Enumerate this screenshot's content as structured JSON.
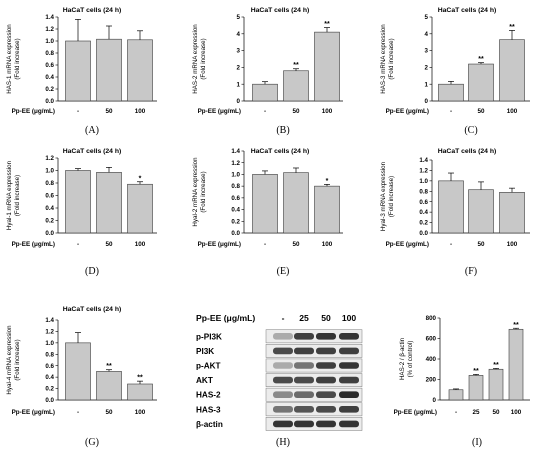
{
  "figure": {
    "colors": {
      "bar_fill": "#c8c8c8",
      "bar_stroke": "#3a3a3a",
      "axis": "#000000",
      "blot_background": "#ececec",
      "blot_border": "#7a7a7a"
    }
  },
  "chart_data": [
    {
      "type": "bar",
      "panel_label": "(A)",
      "title": "HaCaT cells (24 h)",
      "ylabel": [
        "HAS-1 mRNA expression",
        "(Fold increase)"
      ],
      "xlabel": "Pp-EE (μg/mL)",
      "categories": [
        "-",
        "50",
        "100"
      ],
      "values": [
        1.0,
        1.03,
        1.02
      ],
      "errors": [
        0.36,
        0.22,
        0.15
      ],
      "annotations": [
        "",
        "",
        ""
      ],
      "ylim": [
        0,
        1.4
      ],
      "yticks": [
        "0.0",
        "0.2",
        "0.4",
        "0.6",
        "0.8",
        "1.0",
        "1.2",
        "1.4"
      ]
    },
    {
      "type": "bar",
      "panel_label": "(B)",
      "title": "HaCaT cells (24 h)",
      "ylabel": [
        "HAS-2 mRNA expression",
        "(Fold increase)"
      ],
      "xlabel": "Pp-EE (μg/mL)",
      "categories": [
        "-",
        "50",
        "100"
      ],
      "values": [
        1.0,
        1.8,
        4.1
      ],
      "errors": [
        0.15,
        0.12,
        0.27
      ],
      "annotations": [
        "",
        "**",
        "**"
      ],
      "ylim": [
        0,
        5
      ],
      "yticks": [
        "0",
        "1",
        "2",
        "3",
        "4",
        "5"
      ]
    },
    {
      "type": "bar",
      "panel_label": "(C)",
      "title": "HaCaT cells (24 h)",
      "ylabel": [
        "HAS-3 mRNA expression",
        "(Fold increase)"
      ],
      "xlabel": "Pp-EE (μg/mL)",
      "categories": [
        "-",
        "50",
        "100"
      ],
      "values": [
        1.0,
        2.2,
        3.65
      ],
      "errors": [
        0.17,
        0.08,
        0.55
      ],
      "annotations": [
        "",
        "**",
        "**"
      ],
      "ylim": [
        0,
        5
      ],
      "yticks": [
        "0",
        "1",
        "2",
        "3",
        "4",
        "5"
      ]
    },
    {
      "type": "bar",
      "panel_label": "(D)",
      "title": "HaCaT cells (24 h)",
      "ylabel": [
        "Hyal-1 mRNA expression",
        "(Fold increase)"
      ],
      "xlabel": "Pp-EE (μg/mL)",
      "categories": [
        "-",
        "50",
        "100"
      ],
      "values": [
        1.0,
        0.97,
        0.78
      ],
      "errors": [
        0.03,
        0.08,
        0.04
      ],
      "annotations": [
        "",
        "",
        "*"
      ],
      "ylim": [
        0,
        1.2
      ],
      "yticks": [
        "0.0",
        "0.2",
        "0.4",
        "0.6",
        "0.8",
        "1.0",
        "1.2"
      ]
    },
    {
      "type": "bar",
      "panel_label": "(E)",
      "title": "HaCaT cells (24 h)",
      "ylabel": [
        "Hyal-2 mRNA expression",
        "(Fold increase)"
      ],
      "xlabel": "Pp-EE (μg/mL)",
      "categories": [
        "-",
        "50",
        "100"
      ],
      "values": [
        1.0,
        1.03,
        0.8
      ],
      "errors": [
        0.06,
        0.08,
        0.03
      ],
      "annotations": [
        "",
        "",
        "*"
      ],
      "ylim": [
        0,
        1.4
      ],
      "yticks": [
        "0.0",
        "0.2",
        "0.4",
        "0.6",
        "0.8",
        "1.0",
        "1.2",
        "1.4"
      ]
    },
    {
      "type": "bar",
      "panel_label": "(F)",
      "title": "HaCaT cells (24 h)",
      "ylabel": [
        "Hyal-3 mRNA expression",
        "(Fold increase)"
      ],
      "xlabel": "Pp-EE (μg/mL)",
      "categories": [
        "-",
        "50",
        "100"
      ],
      "values": [
        1.0,
        0.83,
        0.78
      ],
      "errors": [
        0.15,
        0.15,
        0.08
      ],
      "annotations": [
        "",
        "",
        ""
      ],
      "ylim": [
        0,
        1.4
      ],
      "yticks": [
        "0.0",
        "0.2",
        "0.4",
        "0.6",
        "0.8",
        "1.0",
        "1.2",
        "1.4"
      ]
    },
    {
      "type": "bar",
      "panel_label": "(G)",
      "title": "HaCaT cells (24 h)",
      "ylabel": [
        "Hyal-4 mRNA expression",
        "(Fold increase)"
      ],
      "xlabel": "Pp-EE (μg/mL)",
      "categories": [
        "-",
        "50",
        "100"
      ],
      "values": [
        1.0,
        0.5,
        0.28
      ],
      "errors": [
        0.18,
        0.03,
        0.05
      ],
      "annotations": [
        "",
        "**",
        "**"
      ],
      "ylim": [
        0,
        1.4
      ],
      "yticks": [
        "0.0",
        "0.2",
        "0.4",
        "0.6",
        "0.8",
        "1.0",
        "1.2",
        "1.4"
      ]
    },
    {
      "type": "bar",
      "panel_label": "(I)",
      "title": "",
      "ylabel": [
        "HAS-2 / β-actin",
        "(% of control)"
      ],
      "xlabel": "Pp-EE (μg/mL)",
      "categories": [
        "-",
        "25",
        "50",
        "100"
      ],
      "values": [
        100,
        240,
        300,
        690
      ],
      "errors": [
        8,
        10,
        8,
        10
      ],
      "annotations": [
        "",
        "**",
        "**",
        "**"
      ],
      "ylim": [
        0,
        800
      ],
      "yticks": [
        "0",
        "200",
        "400",
        "600",
        "800"
      ]
    }
  ],
  "blot": {
    "panel_label": "(H)",
    "header": "Pp-EE (μg/mL)",
    "lanes": [
      "-",
      "25",
      "50",
      "100"
    ],
    "rows": [
      {
        "label": "p-PI3K",
        "band_intensity": [
          0.3,
          0.8,
          0.85,
          0.85
        ]
      },
      {
        "label": "PI3K",
        "band_intensity": [
          0.75,
          0.8,
          0.8,
          0.8
        ]
      },
      {
        "label": "p-AKT",
        "band_intensity": [
          0.3,
          0.55,
          0.8,
          0.85
        ]
      },
      {
        "label": "AKT",
        "band_intensity": [
          0.75,
          0.75,
          0.8,
          0.8
        ]
      },
      {
        "label": "HAS-2",
        "band_intensity": [
          0.45,
          0.6,
          0.75,
          0.9
        ]
      },
      {
        "label": "HAS-3",
        "band_intensity": [
          0.55,
          0.7,
          0.75,
          0.8
        ]
      },
      {
        "label": "β-actin",
        "band_intensity": [
          0.85,
          0.85,
          0.85,
          0.85
        ]
      }
    ]
  }
}
